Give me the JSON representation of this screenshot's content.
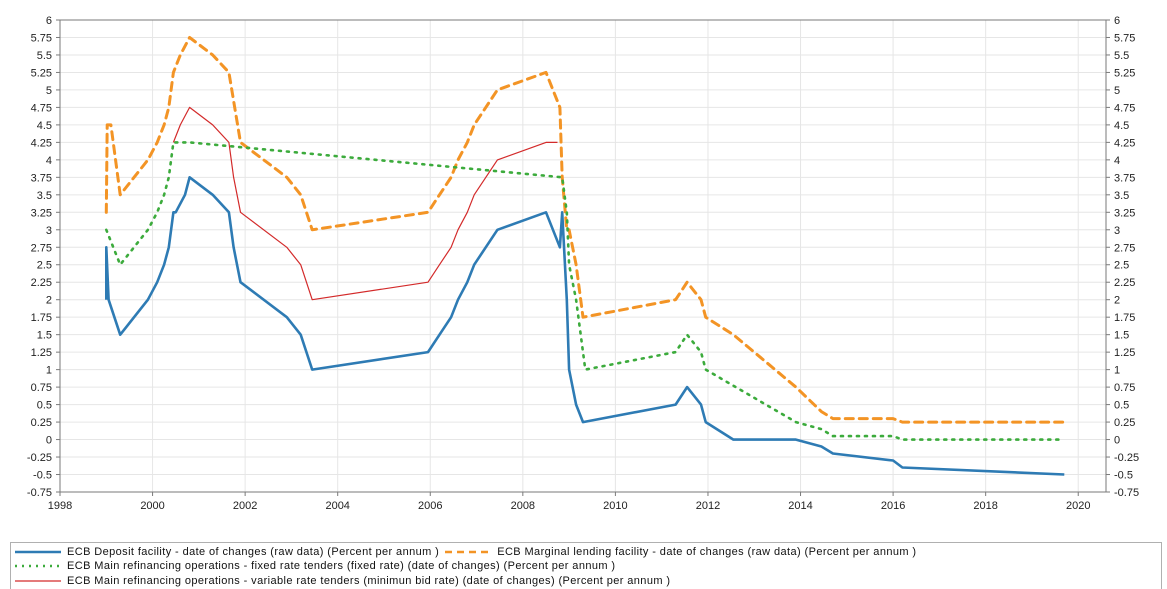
{
  "chart_data": {
    "type": "line",
    "title": "",
    "xlabel": "",
    "ylabel": "",
    "xlim": [
      1998,
      2020.6
    ],
    "ylim": [
      -0.75,
      6
    ],
    "x_ticks": [
      "1998",
      "2000",
      "2002",
      "2004",
      "2006",
      "2008",
      "2010",
      "2012",
      "2014",
      "2016",
      "2018",
      "2020"
    ],
    "y_ticks": [
      "6",
      "5.75",
      "5.5",
      "5.25",
      "5",
      "4.75",
      "4.5",
      "4.25",
      "4",
      "3.75",
      "3.5",
      "3.25",
      "3",
      "2.75",
      "2.5",
      "2.25",
      "2",
      "1.75",
      "1.5",
      "1.25",
      "1",
      "0.75",
      "0.5",
      "0.25",
      "0",
      "-0.25",
      "-0.5",
      "-0.75"
    ],
    "grid": true,
    "legend_position": "bottom",
    "series": [
      {
        "name": "ECB Deposit facility - date of changes (raw data) (Percent per annum )",
        "color": "#2e7bb4",
        "style": "solid",
        "points": [
          [
            1999.0,
            2.0
          ],
          [
            1999.0,
            2.75
          ],
          [
            1999.05,
            2.0
          ],
          [
            1999.3,
            1.5
          ],
          [
            1999.9,
            2.0
          ],
          [
            2000.1,
            2.25
          ],
          [
            2000.25,
            2.5
          ],
          [
            2000.35,
            2.75
          ],
          [
            2000.45,
            3.25
          ],
          [
            2000.5,
            3.25
          ],
          [
            2000.7,
            3.5
          ],
          [
            2000.8,
            3.75
          ],
          [
            2001.3,
            3.5
          ],
          [
            2001.65,
            3.25
          ],
          [
            2001.75,
            2.75
          ],
          [
            2001.9,
            2.25
          ],
          [
            2002.9,
            1.75
          ],
          [
            2003.2,
            1.5
          ],
          [
            2003.45,
            1.0
          ],
          [
            2005.95,
            1.25
          ],
          [
            2006.2,
            1.5
          ],
          [
            2006.45,
            1.75
          ],
          [
            2006.6,
            2.0
          ],
          [
            2006.8,
            2.25
          ],
          [
            2006.95,
            2.5
          ],
          [
            2007.45,
            3.0
          ],
          [
            2008.5,
            3.25
          ],
          [
            2008.8,
            2.75
          ],
          [
            2008.85,
            3.25
          ],
          [
            2008.95,
            2.0
          ],
          [
            2009.0,
            1.0
          ],
          [
            2009.15,
            0.5
          ],
          [
            2009.3,
            0.25
          ],
          [
            2011.3,
            0.5
          ],
          [
            2011.55,
            0.75
          ],
          [
            2011.85,
            0.5
          ],
          [
            2011.95,
            0.25
          ],
          [
            2012.55,
            0.0
          ],
          [
            2013.9,
            0.0
          ],
          [
            2014.45,
            -0.1
          ],
          [
            2014.7,
            -0.2
          ],
          [
            2016.0,
            -0.3
          ],
          [
            2016.2,
            -0.4
          ],
          [
            2019.7,
            -0.5
          ]
        ]
      },
      {
        "name": "ECB Marginal lending facility - date of changes (raw data) (Percent per annum )",
        "color": "#f39425",
        "style": "dashed",
        "points": [
          [
            1999.0,
            3.25
          ],
          [
            1999.02,
            4.5
          ],
          [
            1999.1,
            4.5
          ],
          [
            1999.3,
            3.5
          ],
          [
            1999.9,
            4.0
          ],
          [
            2000.1,
            4.25
          ],
          [
            2000.25,
            4.5
          ],
          [
            2000.35,
            4.75
          ],
          [
            2000.45,
            5.25
          ],
          [
            2000.6,
            5.5
          ],
          [
            2000.8,
            5.75
          ],
          [
            2001.3,
            5.5
          ],
          [
            2001.65,
            5.25
          ],
          [
            2001.9,
            4.25
          ],
          [
            2002.9,
            3.75
          ],
          [
            2003.2,
            3.5
          ],
          [
            2003.45,
            3.0
          ],
          [
            2005.95,
            3.25
          ],
          [
            2006.2,
            3.5
          ],
          [
            2006.45,
            3.75
          ],
          [
            2006.6,
            4.0
          ],
          [
            2006.8,
            4.25
          ],
          [
            2006.95,
            4.5
          ],
          [
            2007.45,
            5.0
          ],
          [
            2008.5,
            5.25
          ],
          [
            2008.8,
            4.75
          ],
          [
            2008.85,
            3.75
          ],
          [
            2008.95,
            3.0
          ],
          [
            2009.0,
            3.0
          ],
          [
            2009.15,
            2.5
          ],
          [
            2009.3,
            1.75
          ],
          [
            2011.3,
            2.0
          ],
          [
            2011.55,
            2.25
          ],
          [
            2011.85,
            2.0
          ],
          [
            2011.95,
            1.75
          ],
          [
            2012.55,
            1.5
          ],
          [
            2013.9,
            0.75
          ],
          [
            2014.45,
            0.4
          ],
          [
            2014.7,
            0.3
          ],
          [
            2016.0,
            0.3
          ],
          [
            2016.2,
            0.25
          ],
          [
            2019.7,
            0.25
          ]
        ]
      },
      {
        "name": "ECB Main refinancing operations - fixed rate tenders (fixed rate) (date of changes) (Percent per annum )",
        "color": "#3cab3c",
        "style": "dotted",
        "points": [
          [
            1999.0,
            3.0
          ],
          [
            1999.3,
            2.5
          ],
          [
            1999.9,
            3.0
          ],
          [
            2000.1,
            3.25
          ],
          [
            2000.25,
            3.5
          ],
          [
            2000.35,
            3.75
          ],
          [
            2000.45,
            4.25
          ],
          [
            2000.8,
            4.25
          ],
          [
            2008.85,
            3.75
          ],
          [
            2008.95,
            3.25
          ],
          [
            2009.0,
            2.5
          ],
          [
            2009.15,
            2.0
          ],
          [
            2009.35,
            1.0
          ],
          [
            2011.3,
            1.25
          ],
          [
            2011.55,
            1.5
          ],
          [
            2011.85,
            1.25
          ],
          [
            2011.95,
            1.0
          ],
          [
            2013.9,
            0.25
          ],
          [
            2014.45,
            0.15
          ],
          [
            2014.7,
            0.05
          ],
          [
            2016.0,
            0.05
          ],
          [
            2016.2,
            0.0
          ],
          [
            2019.7,
            0.0
          ]
        ]
      },
      {
        "name": "ECB Main refinancing operations - variable rate tenders (minimun bid rate) (date of changes) (Percent per annum )",
        "color": "#d32a2a",
        "style": "solid",
        "points": [
          [
            2000.45,
            4.25
          ],
          [
            2000.6,
            4.5
          ],
          [
            2000.8,
            4.75
          ],
          [
            2001.3,
            4.5
          ],
          [
            2001.65,
            4.25
          ],
          [
            2001.75,
            3.75
          ],
          [
            2001.9,
            3.25
          ],
          [
            2002.9,
            2.75
          ],
          [
            2003.2,
            2.5
          ],
          [
            2003.45,
            2.0
          ],
          [
            2005.95,
            2.25
          ],
          [
            2006.2,
            2.5
          ],
          [
            2006.45,
            2.75
          ],
          [
            2006.6,
            3.0
          ],
          [
            2006.8,
            3.25
          ],
          [
            2006.95,
            3.5
          ],
          [
            2007.45,
            4.0
          ],
          [
            2008.5,
            4.25
          ],
          [
            2008.75,
            4.25
          ]
        ]
      }
    ]
  }
}
